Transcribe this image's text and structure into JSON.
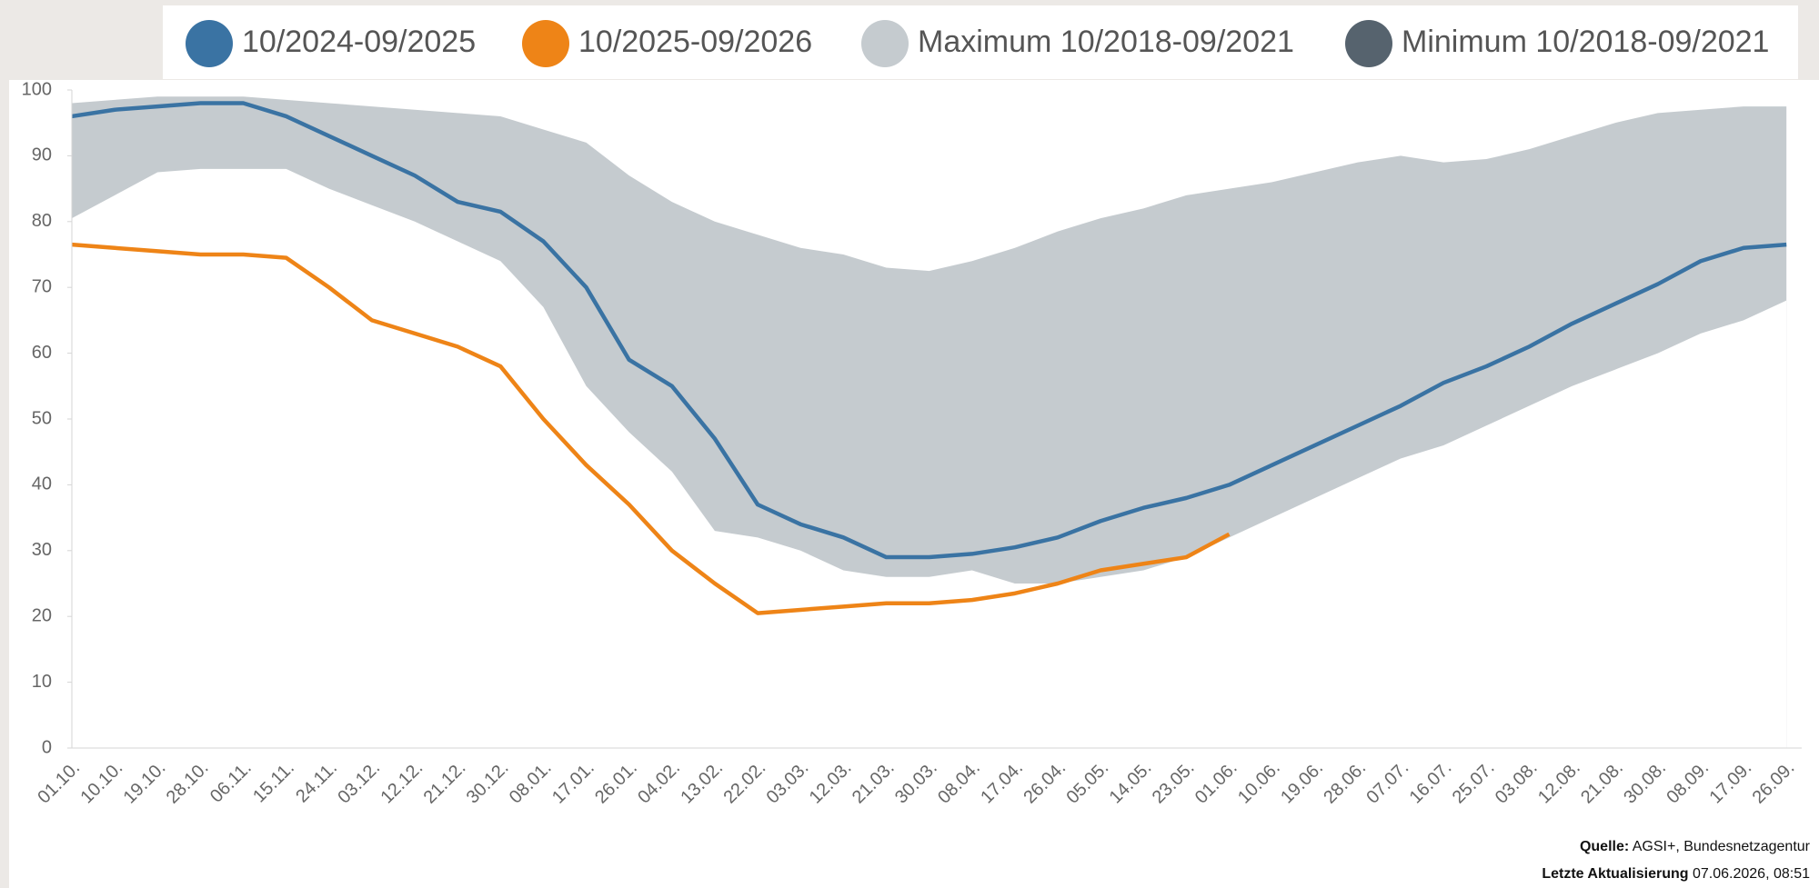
{
  "chart_data": {
    "type": "line",
    "categories": [
      "01.10.",
      "10.10.",
      "19.10.",
      "28.10.",
      "06.11.",
      "15.11.",
      "24.11.",
      "03.12.",
      "12.12.",
      "21.12.",
      "30.12.",
      "08.01.",
      "17.01.",
      "26.01.",
      "04.02.",
      "13.02.",
      "22.02.",
      "03.03.",
      "12.03.",
      "21.03.",
      "30.03.",
      "08.04.",
      "17.04.",
      "26.04.",
      "05.05.",
      "14.05.",
      "23.05.",
      "01.06.",
      "10.06.",
      "19.06.",
      "28.06.",
      "07.07.",
      "16.07.",
      "25.07.",
      "03.08.",
      "12.08.",
      "21.08.",
      "30.08.",
      "08.09.",
      "17.09.",
      "26.09."
    ],
    "series": [
      {
        "name": "10/2024-09/2025",
        "color": "#3a73a3",
        "values": [
          96,
          97,
          97.5,
          98,
          98,
          96,
          93,
          90,
          87,
          83,
          81.5,
          77,
          70,
          59,
          55,
          47,
          37,
          34,
          32,
          29,
          29,
          29.5,
          30.5,
          32,
          34.5,
          36.5,
          38,
          40,
          43,
          46,
          49,
          52,
          55.5,
          58,
          61,
          64.5,
          67.5,
          70.5,
          74,
          76,
          76.5
        ]
      },
      {
        "name": "10/2025-09/2026",
        "color": "#ee8417",
        "values": [
          76.5,
          76,
          75.5,
          75,
          75,
          74.5,
          70,
          65,
          63,
          61,
          58,
          50,
          43,
          37,
          30,
          25,
          20.5,
          21,
          21.5,
          22,
          22,
          22.5,
          23.5,
          25,
          27,
          28,
          29,
          32.5,
          null,
          null,
          null,
          null,
          null,
          null,
          null,
          null,
          null,
          null,
          null,
          null,
          null
        ]
      },
      {
        "name": "Maximum 10/2018-09/2021",
        "color": "#c5cbcf",
        "values": [
          98,
          98.5,
          99,
          99,
          99,
          98.5,
          98,
          97.5,
          97,
          96.5,
          96,
          94,
          92,
          87,
          83,
          80,
          78,
          76,
          75,
          73,
          72.5,
          74,
          76,
          78.5,
          80.5,
          82,
          84,
          85,
          86,
          87.5,
          89,
          90,
          89,
          89.5,
          91,
          93,
          95,
          96.5,
          97,
          97.5,
          97.5
        ]
      },
      {
        "name": "Minimum 10/2018-09/2021",
        "color": "#56636e",
        "values": [
          80.5,
          84,
          87.5,
          88,
          88,
          88,
          85,
          82.5,
          80,
          77,
          74,
          67,
          55,
          48,
          42,
          33,
          32,
          30,
          27,
          26,
          26,
          27,
          25,
          25,
          26,
          27,
          29,
          32,
          35,
          38,
          41,
          44,
          46,
          49,
          52,
          55,
          57.5,
          60,
          63,
          65,
          68
        ]
      }
    ],
    "ylim": [
      0,
      100
    ],
    "yticks": [
      0,
      10,
      20,
      30,
      40,
      50,
      60,
      70,
      80,
      90,
      100
    ],
    "source": {
      "label": "Quelle:",
      "text": "AGSI+, Bundesnetzagentur"
    },
    "updated": {
      "label": "Letzte Aktualisierung",
      "text": "07.06.2026, 08:51"
    }
  }
}
